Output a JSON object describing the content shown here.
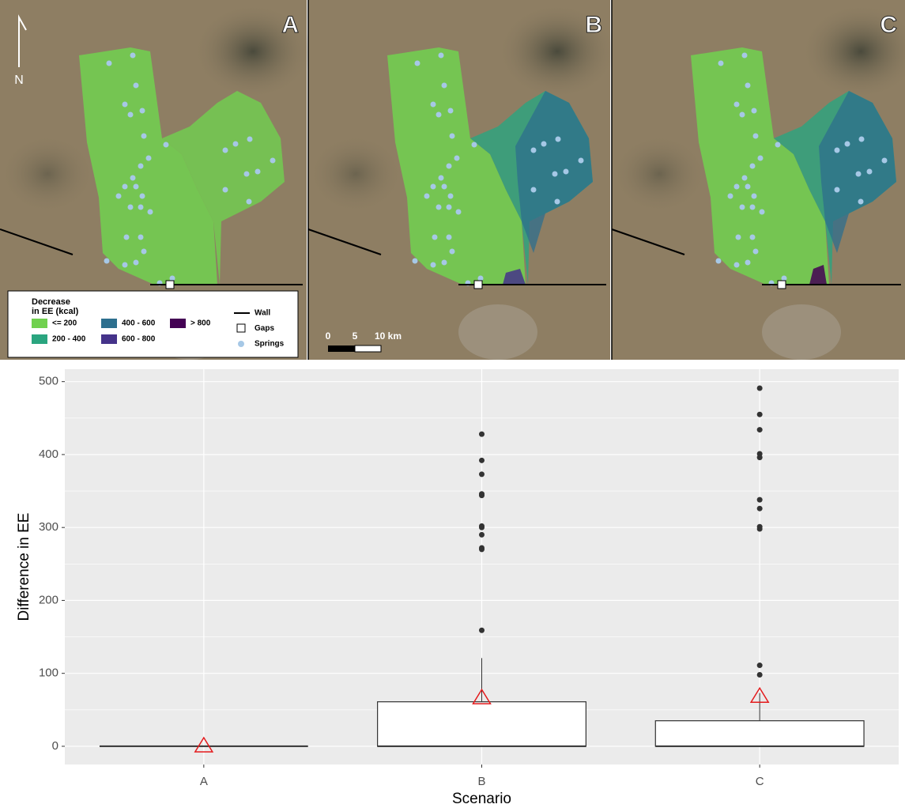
{
  "maps": {
    "panels": [
      "A",
      "B",
      "C"
    ],
    "north": "N",
    "legend": {
      "title": [
        "Decrease",
        "in EE (kcal)"
      ],
      "classes": [
        {
          "label": "<= 200",
          "color": "#71d14f"
        },
        {
          "label": "200 - 400",
          "color": "#2aa57f"
        },
        {
          "label": "400 - 600",
          "color": "#2d6f8e"
        },
        {
          "label": "600 - 800",
          "color": "#45338a"
        },
        {
          "label": "> 800",
          "color": "#440154"
        }
      ],
      "symbols": [
        "Wall",
        "Gaps",
        "Springs"
      ]
    },
    "scale": [
      "0",
      "5",
      "10 km"
    ]
  },
  "chart_data": {
    "type": "box",
    "x_label": "Scenario",
    "y_label": "Difference in EE",
    "categories": [
      "A",
      "B",
      "C"
    ],
    "min": [
      0,
      0,
      0
    ],
    "q1": [
      0,
      0,
      0
    ],
    "median": [
      0,
      0,
      0
    ],
    "q3": [
      0,
      61,
      35
    ],
    "max": [
      0,
      121,
      73
    ],
    "means": [
      1,
      67,
      69
    ],
    "outliers": [
      [],
      [
        428,
        392,
        373,
        346,
        344,
        302,
        300,
        290,
        272,
        270,
        159
      ],
      [
        491,
        455,
        434,
        401,
        396,
        338,
        326,
        301,
        298,
        111,
        98
      ]
    ],
    "box_color": "#ffffff",
    "mean_color": "#e41a1c",
    "outlier_color": "#333333",
    "ylim": [
      -25,
      517
    ],
    "yticks": [
      0,
      100,
      200,
      300,
      400,
      500
    ],
    "yminor": [
      50,
      150,
      250,
      350,
      450
    ],
    "grid": true
  }
}
